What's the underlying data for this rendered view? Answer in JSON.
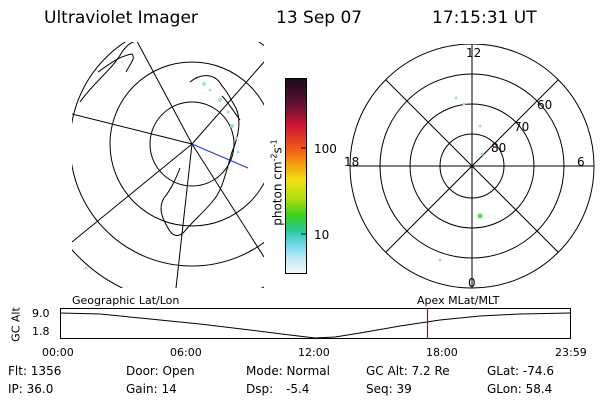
{
  "header": {
    "instrument": "Ultraviolet Imager",
    "date": "13 Sep 07",
    "time": "17:15:31 UT"
  },
  "colorbar": {
    "unit_label": "photon cm-2s-1",
    "ticks": [
      "100",
      "10"
    ]
  },
  "polar_plot": {
    "mlt_labels": {
      "top": "12",
      "right": "6",
      "bottom": "0",
      "left": "18"
    },
    "lat_labels": [
      "60",
      "70",
      "80"
    ]
  },
  "timeline": {
    "left_title": "Geographic Lat/Lon",
    "right_title": "Apex  MLat/MLT",
    "y_axis_label": "GC Alt",
    "y_ticks": [
      "9.0",
      "1.8"
    ],
    "x_ticks": [
      "00:00",
      "06:00",
      "12:00",
      "18:00",
      "23:59"
    ],
    "marker_time_hours": 17.26,
    "marker_color": "#cc0000"
  },
  "info": {
    "row1": [
      "Flt: 1356",
      "Door: Open",
      "Mode: Normal",
      "GC Alt: 7.2 Re",
      "GLat: -74.6"
    ],
    "row2": [
      "IP: 36.0",
      "Gain: 14",
      "Dsp:",
      "-5.4",
      "Seq: 39",
      "GLon:  58.4"
    ]
  },
  "colors": {
    "aurora": "#9fe0d8",
    "aurora_dot": "#55dd55",
    "blue_line": "#2233dd"
  }
}
